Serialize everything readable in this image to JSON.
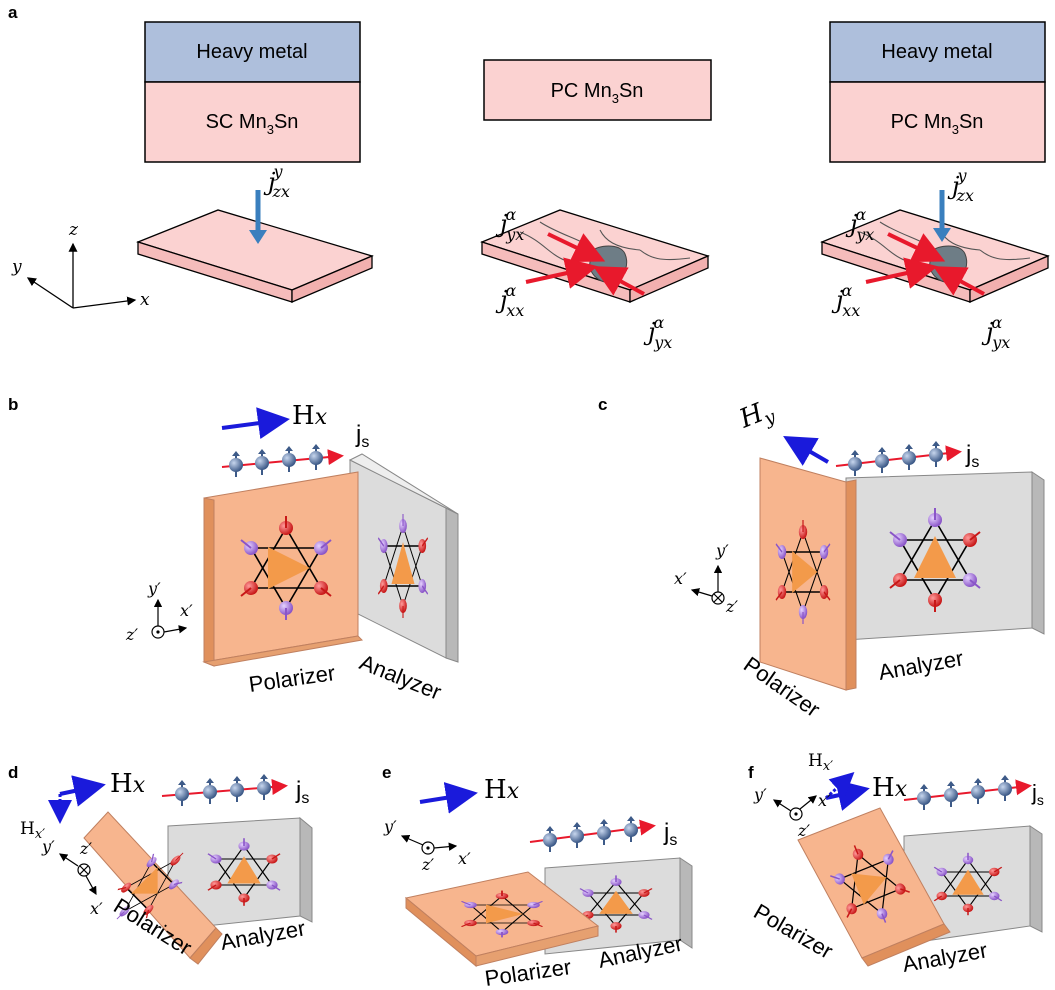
{
  "panels": {
    "a": {
      "label": "a",
      "stack_left": {
        "top": "Heavy metal",
        "bottom_prefix": "SC Mn",
        "bottom_sub": "3",
        "bottom_suffix": "Sn"
      },
      "stack_mid": {
        "prefix": "PC Mn",
        "sub": "3",
        "suffix": "Sn"
      },
      "stack_right": {
        "top": "Heavy metal",
        "bottom_prefix": "PC Mn",
        "bottom_sub": "3",
        "bottom_suffix": "Sn"
      },
      "axes": {
        "x": "x",
        "y": "y",
        "z": "z"
      },
      "j_zx_y": {
        "base": "j",
        "sub": "zx",
        "sup": "y"
      },
      "j_yx_a": {
        "base": "j",
        "sub": "yx",
        "sup": "α"
      },
      "j_xx_a": {
        "base": "j",
        "sub": "xx",
        "sup": "α"
      }
    },
    "b": {
      "label": "b",
      "field": "H",
      "field_sub": "x",
      "spin_current": "j",
      "spin_current_sub": "s",
      "axes": {
        "x": "x′",
        "y": "y′",
        "z": "z′"
      },
      "polarizer": "Polarizer",
      "analyzer": "Analyzer"
    },
    "c": {
      "label": "c",
      "field": "H",
      "field_sub": "y",
      "spin_current": "j",
      "spin_current_sub": "s",
      "axes": {
        "x": "x′",
        "y": "y′",
        "z": "z′"
      },
      "polarizer": "Polarizer",
      "analyzer": "Analyzer"
    },
    "d": {
      "label": "d",
      "field": "H",
      "field_sub": "x",
      "field2": "H",
      "field2_sub": "x′",
      "spin_current": "j",
      "spin_current_sub": "s",
      "axes": {
        "x": "x′",
        "y": "y′",
        "z": "z′"
      },
      "polarizer": "Polarizer",
      "analyzer": "Analyzer"
    },
    "e": {
      "label": "e",
      "field": "H",
      "field_sub": "x",
      "spin_current": "j",
      "spin_current_sub": "s",
      "axes": {
        "x": "x′",
        "y": "y′",
        "z": "z′"
      },
      "polarizer": "Polarizer",
      "analyzer": "Analyzer"
    },
    "f": {
      "label": "f",
      "field": "H",
      "field_sub": "x",
      "field2": "H",
      "field2_sub": "x′",
      "spin_current": "j",
      "spin_current_sub": "s",
      "axes": {
        "x": "x′",
        "y": "y′",
        "z": "z′"
      },
      "polarizer": "Polarizer",
      "analyzer": "Analyzer"
    }
  },
  "colors": {
    "heavy_metal": "#aebfdc",
    "mn3sn": "#fbd2d1",
    "polarizer": "#f7b58e",
    "analyzer": "#dcdcdc",
    "field_arrow": "#1a1adb",
    "current_arrow": "#3a7fbe",
    "red_arrow": "#e8192c",
    "spin_ball": "#4f6f9f",
    "atom_red": "#e03030",
    "atom_purple": "#a070d0"
  }
}
